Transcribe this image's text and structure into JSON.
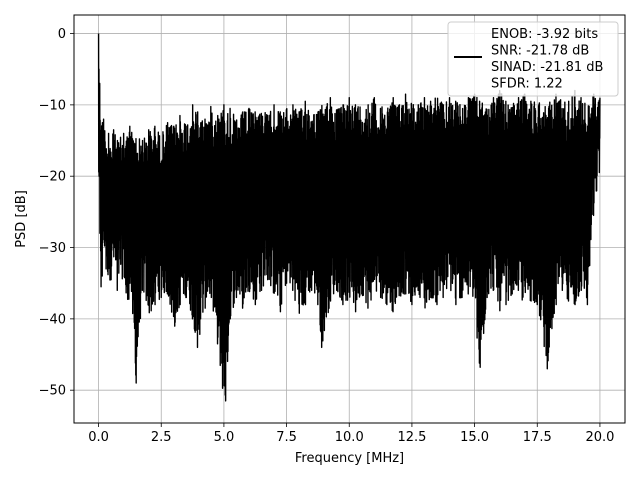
{
  "chart_data": {
    "type": "line",
    "title": "",
    "xlabel": "Frequency [MHz]",
    "ylabel": "PSD [dB]",
    "xlim": [
      -0.98,
      21.0
    ],
    "ylim": [
      -54.6,
      2.6
    ],
    "xticks": [
      0.0,
      2.5,
      5.0,
      7.5,
      10.0,
      12.5,
      15.0,
      17.5,
      20.0
    ],
    "xtick_labels": [
      "0.0",
      "2.5",
      "5.0",
      "7.5",
      "10.0",
      "12.5",
      "15.0",
      "17.5",
      "20.0"
    ],
    "yticks": [
      0,
      -10,
      -20,
      -30,
      -40,
      -50
    ],
    "ytick_labels": [
      "0",
      "−10",
      "−20",
      "−30",
      "−40",
      "−50"
    ],
    "grid": true,
    "legend": {
      "placement": "top-right",
      "entries": [
        "ENOB: -3.92 bits",
        "SNR: -21.78 dB",
        "SINAD: -21.81 dB",
        "SFDR: 1.22"
      ]
    },
    "series": [
      {
        "color": "#000000",
        "x": [
          0.0,
          0.02,
          0.05,
          0.1,
          0.15,
          0.2,
          0.3,
          0.4,
          0.5,
          0.6,
          0.75,
          1.0,
          1.14,
          1.25,
          1.5,
          1.75,
          2.0,
          2.25,
          2.5,
          2.75,
          3.0,
          3.25,
          3.5,
          3.75,
          3.95,
          4.25,
          4.5,
          4.75,
          5.0,
          5.07,
          5.25,
          5.5,
          5.75,
          6.0,
          6.25,
          6.5,
          6.75,
          7.0,
          7.25,
          7.5,
          7.75,
          8.0,
          8.25,
          8.5,
          8.75,
          8.9,
          9.25,
          9.5,
          9.75,
          10.0,
          10.25,
          10.5,
          10.75,
          11.0,
          11.25,
          11.5,
          11.75,
          12.0,
          12.25,
          12.5,
          12.75,
          13.0,
          13.25,
          13.5,
          13.75,
          14.0,
          14.25,
          14.5,
          14.75,
          15.0,
          15.2,
          15.5,
          15.75,
          16.0,
          16.25,
          16.5,
          16.75,
          17.0,
          17.25,
          17.5,
          17.9,
          18.25,
          18.5,
          18.75,
          19.0,
          19.25,
          19.5,
          19.75,
          20.0
        ],
        "upper": [
          0.0,
          -5.0,
          -7.0,
          -11.0,
          -12.5,
          -12.0,
          -13.5,
          -14.0,
          -15.0,
          -13.5,
          -15.0,
          -14.0,
          -14.5,
          -13.0,
          -14.0,
          -15.0,
          -13.5,
          -13.0,
          -14.0,
          -12.5,
          -13.0,
          -11.5,
          -12.0,
          -10.0,
          -11.0,
          -12.0,
          -10.0,
          -11.5,
          -10.0,
          -11.0,
          -10.5,
          -12.0,
          -11.0,
          -10.5,
          -11.0,
          -10.0,
          -11.5,
          -10.0,
          -11.0,
          -10.5,
          -10.0,
          -11.0,
          -9.5,
          -10.0,
          -11.0,
          -10.0,
          -9.0,
          -10.5,
          -10.0,
          -9.0,
          -10.0,
          -9.5,
          -10.0,
          -9.0,
          -10.5,
          -9.5,
          -9.0,
          -10.0,
          -8.5,
          -9.5,
          -10.0,
          -9.0,
          -9.5,
          -8.5,
          -10.0,
          -9.0,
          -9.5,
          -10.0,
          -9.0,
          -8.5,
          -9.5,
          -10.0,
          -9.0,
          -8.0,
          -9.5,
          -10.0,
          -9.0,
          -8.5,
          -9.5,
          -9.0,
          -10.0,
          -8.5,
          -9.0,
          -9.5,
          -8.0,
          -9.0,
          -10.0,
          -8.5,
          -9.0
        ],
        "lower": [
          -23.0,
          -20.0,
          -28.0,
          -35.5,
          -34.0,
          -30.0,
          -33.0,
          -35.0,
          -34.5,
          -33.5,
          -36.0,
          -34.0,
          -41.0,
          -35.0,
          -49.0,
          -36.0,
          -40.0,
          -38.0,
          -37.0,
          -36.5,
          -42.0,
          -38.0,
          -37.0,
          -40.0,
          -44.0,
          -38.5,
          -37.0,
          -43.5,
          -52.0,
          -51.5,
          -40.0,
          -37.0,
          -38.5,
          -36.0,
          -38.0,
          -36.0,
          -34.5,
          -37.0,
          -39.0,
          -35.0,
          -36.0,
          -40.0,
          -38.0,
          -36.0,
          -38.0,
          -44.0,
          -37.5,
          -36.0,
          -38.0,
          -37.5,
          -39.0,
          -36.5,
          -38.5,
          -36.5,
          -37.0,
          -38.0,
          -39.0,
          -37.0,
          -36.5,
          -38.0,
          -36.0,
          -39.5,
          -37.0,
          -38.0,
          -37.0,
          -36.0,
          -38.0,
          -37.0,
          -36.5,
          -38.0,
          -49.5,
          -37.0,
          -36.0,
          -39.0,
          -38.0,
          -36.5,
          -36.0,
          -39.0,
          -37.5,
          -38.0,
          -47.0,
          -38.0,
          -36.0,
          -37.5,
          -39.0,
          -36.0,
          -38.0,
          -25.5,
          -20.0
        ]
      }
    ]
  }
}
